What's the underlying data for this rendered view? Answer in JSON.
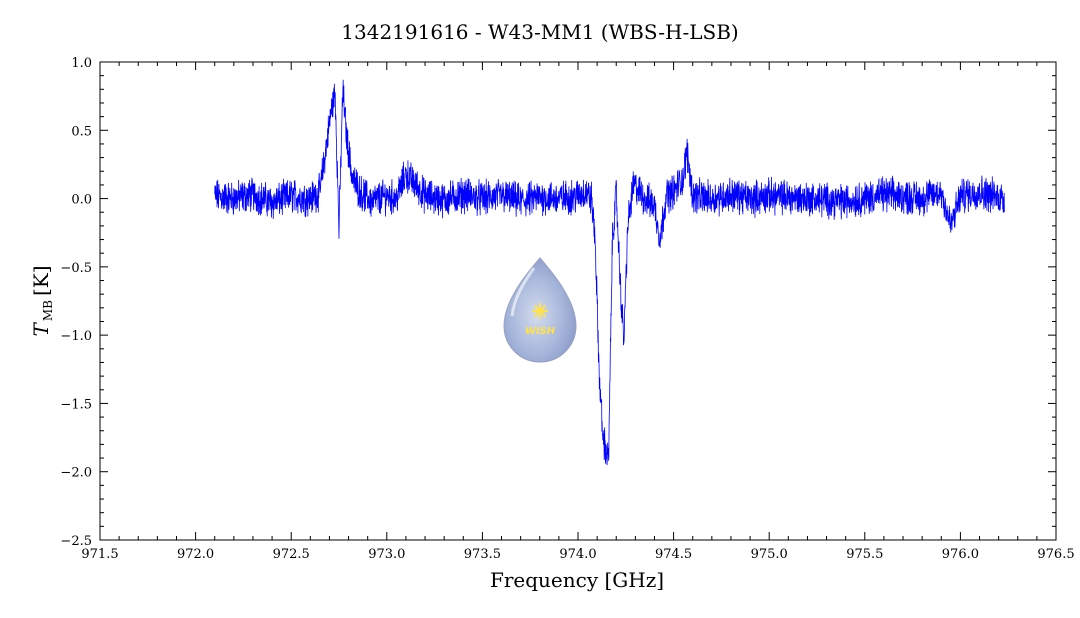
{
  "chart_data": {
    "type": "line",
    "title": "1342191616 - W43-MM1 (WBS-H-LSB)",
    "xlabel": "Frequency [GHz]",
    "ylabel": {
      "symbol": "T",
      "subscript": "MB",
      "unit": "[K]"
    },
    "xlim": [
      971.5,
      976.5
    ],
    "ylim": [
      -2.5,
      1.0
    ],
    "x_ticks": [
      "971.5",
      "972.0",
      "972.5",
      "973.0",
      "973.5",
      "974.0",
      "974.5",
      "975.0",
      "975.5",
      "976.0",
      "976.5"
    ],
    "y_ticks": [
      "1.0",
      "0.5",
      "0.0",
      "-0.5",
      "-1.0",
      "-1.5",
      "-2.0",
      "-2.5"
    ],
    "grid": false,
    "line_color": "#0000ff",
    "logo_text": "WISH",
    "series": [
      {
        "x": [
          972.1,
          972.2,
          972.3,
          972.4,
          972.5,
          972.6,
          972.65,
          972.68,
          972.71,
          972.73,
          972.75,
          972.77,
          972.79,
          972.82,
          972.86,
          972.92,
          973.0,
          973.05,
          973.1,
          973.2,
          973.3,
          973.4,
          973.5,
          973.6,
          973.7,
          973.8,
          973.9,
          974.0,
          974.04,
          974.07,
          974.09,
          974.11,
          974.13,
          974.16,
          974.18,
          974.2,
          974.22,
          974.24,
          974.26,
          974.29,
          974.32,
          974.35,
          974.4,
          974.43,
          974.46,
          974.5,
          974.55,
          974.57,
          974.6,
          974.7,
          974.8,
          974.9,
          975.0,
          975.2,
          975.4,
          975.6,
          975.8,
          975.9,
          975.95,
          976.0,
          976.1,
          976.23
        ],
        "y": [
          0.02,
          0.0,
          0.03,
          -0.03,
          0.02,
          0.0,
          0.05,
          0.35,
          0.65,
          0.78,
          -0.22,
          0.8,
          0.45,
          0.15,
          0.05,
          -0.02,
          0.02,
          0.0,
          0.18,
          0.02,
          -0.01,
          0.03,
          0.0,
          0.02,
          -0.02,
          0.01,
          0.0,
          0.02,
          0.05,
          0.0,
          -0.3,
          -1.25,
          -1.75,
          -1.92,
          -0.3,
          0.05,
          -0.6,
          -1.05,
          -0.2,
          0.1,
          0.05,
          0.0,
          -0.05,
          -0.3,
          0.02,
          0.05,
          0.15,
          0.35,
          0.02,
          0.0,
          0.03,
          0.0,
          0.02,
          0.0,
          -0.02,
          0.03,
          0.0,
          0.05,
          -0.2,
          0.02,
          0.05,
          0.0
        ]
      }
    ]
  }
}
